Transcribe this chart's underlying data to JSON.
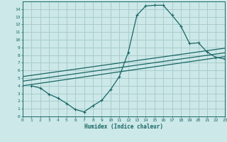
{
  "xlabel": "Humidex (Indice chaleur)",
  "bg_color": "#cce8e8",
  "grid_color": "#aacccc",
  "line_color": "#1a6666",
  "xlim": [
    0,
    23
  ],
  "ylim": [
    0,
    15
  ],
  "xticks": [
    0,
    1,
    2,
    3,
    4,
    5,
    6,
    7,
    8,
    9,
    10,
    11,
    12,
    13,
    14,
    15,
    16,
    17,
    18,
    19,
    20,
    21,
    22,
    23
  ],
  "yticks": [
    0,
    1,
    2,
    3,
    4,
    5,
    6,
    7,
    8,
    9,
    10,
    11,
    12,
    13,
    14
  ],
  "curve1_x": [
    1,
    2,
    3,
    4,
    5,
    6,
    7,
    8,
    9,
    10,
    11,
    12,
    13,
    14,
    15,
    16,
    17,
    18,
    19,
    20,
    21,
    22,
    23
  ],
  "curve1_y": [
    4.0,
    3.7,
    2.9,
    2.4,
    1.7,
    0.9,
    0.6,
    1.4,
    2.1,
    3.5,
    5.2,
    8.3,
    13.2,
    14.4,
    14.5,
    14.5,
    13.2,
    11.8,
    9.5,
    9.6,
    8.4,
    7.7,
    7.5
  ],
  "line1_x": [
    0,
    23
  ],
  "line1_y": [
    4.0,
    7.8
  ],
  "line2_x": [
    0,
    23
  ],
  "line2_y": [
    4.6,
    8.3
  ],
  "line3_x": [
    0,
    23
  ],
  "line3_y": [
    5.2,
    8.9
  ]
}
